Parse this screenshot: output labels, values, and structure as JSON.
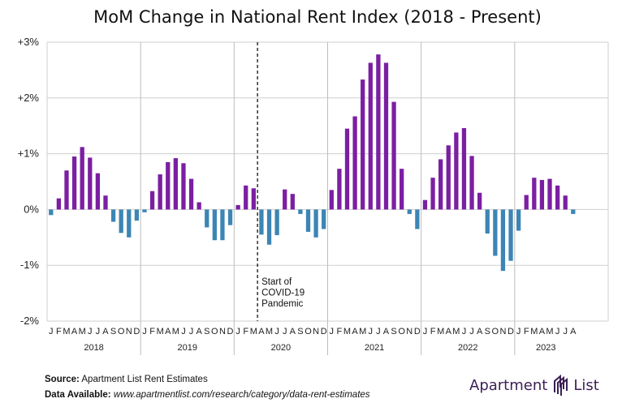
{
  "chart_data": {
    "type": "bar",
    "title": "MoM Change in National Rent Index (2018 - Present)",
    "xlabel": "",
    "ylabel": "",
    "ylim": [
      -2,
      3
    ],
    "yticks": [
      3,
      2,
      1,
      0,
      -1,
      -2
    ],
    "ytick_labels": [
      "+3%",
      "+2%",
      "+1%",
      "0%",
      "-1%",
      "-2%"
    ],
    "grid": true,
    "legend": "none",
    "colors": {
      "positive": "#7b1fa2",
      "negative": "#3c85b5"
    },
    "years": [
      "2018",
      "2019",
      "2020",
      "2021",
      "2022",
      "2023"
    ],
    "month_labels": [
      "J",
      "F",
      "M",
      "A",
      "M",
      "J",
      "J",
      "A",
      "S",
      "O",
      "N",
      "D"
    ],
    "values": [
      -0.1,
      0.2,
      0.7,
      0.95,
      1.12,
      0.93,
      0.65,
      0.25,
      -0.22,
      -0.42,
      -0.5,
      -0.2,
      -0.05,
      0.33,
      0.63,
      0.85,
      0.92,
      0.83,
      0.55,
      0.13,
      -0.32,
      -0.55,
      -0.55,
      -0.28,
      0.08,
      0.43,
      0.38,
      -0.45,
      -0.63,
      -0.46,
      0.36,
      0.28,
      -0.08,
      -0.4,
      -0.5,
      -0.35,
      0.35,
      0.73,
      1.45,
      1.67,
      2.33,
      2.63,
      2.78,
      2.63,
      1.93,
      0.73,
      -0.08,
      -0.35,
      0.17,
      0.57,
      0.9,
      1.15,
      1.38,
      1.46,
      0.96,
      0.3,
      -0.43,
      -0.83,
      -1.1,
      -0.92,
      -0.38,
      0.26,
      0.57,
      0.53,
      0.55,
      0.43,
      0.25,
      -0.08
    ],
    "annotation": {
      "lines": [
        "Start of",
        "COVID-19",
        "Pandemic"
      ],
      "x_index": 27
    }
  },
  "footer": {
    "source_label": "Source:",
    "source_text": "Apartment List Rent Estimates",
    "data_label": "Data Available:",
    "data_url": "www.apartmentlist.com/research/category/data-rent-estimates"
  },
  "logo": {
    "left_text": "Apartment",
    "right_text": "List"
  }
}
